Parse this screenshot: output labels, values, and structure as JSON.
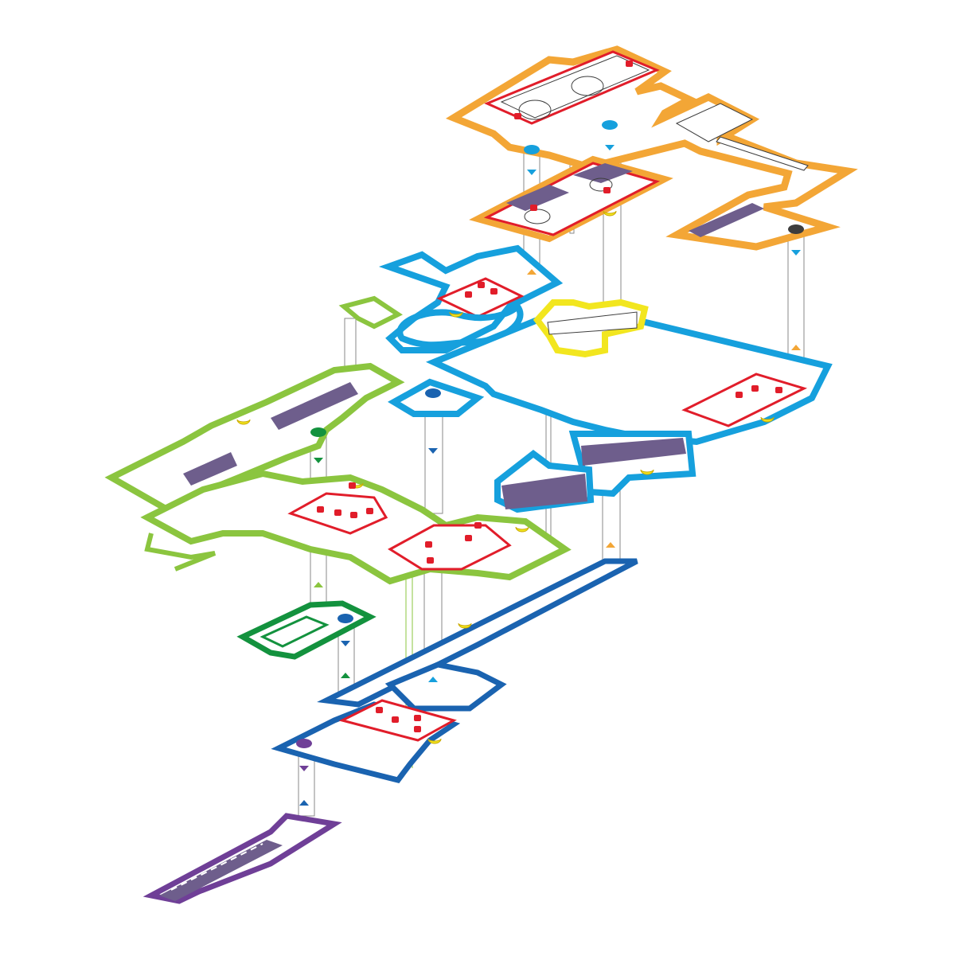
{
  "title": "",
  "palette": {
    "background": "#ffffff",
    "orange": "#f3a636",
    "blue_light": "#16a0dd",
    "blue_dark": "#1a63b0",
    "green_light": "#8bc53f",
    "green_dark": "#13923e",
    "purple": "#6f3f97",
    "fill_purple": "#6e5e8c",
    "yellow": "#f2e61f",
    "red": "#e11d2a",
    "gray": "#3d3d3d",
    "column": "#8a8a8a"
  },
  "levels": [
    {
      "id": "orange-top",
      "color": "orange"
    },
    {
      "id": "orange-mid",
      "color": "orange"
    },
    {
      "id": "orange-right",
      "color": "orange"
    },
    {
      "id": "blue-light-upper",
      "color": "blue_light"
    },
    {
      "id": "blue-light-main",
      "color": "blue_light"
    },
    {
      "id": "yellow-bridge",
      "color": "yellow"
    },
    {
      "id": "green-light-upper",
      "color": "green_light"
    },
    {
      "id": "green-light-lower",
      "color": "green_light"
    },
    {
      "id": "green-dark",
      "color": "green_dark"
    },
    {
      "id": "blue-dark-corridor",
      "color": "blue_dark"
    },
    {
      "id": "blue-dark-base",
      "color": "blue_dark"
    },
    {
      "id": "purple-tail",
      "color": "purple"
    }
  ],
  "legend": []
}
